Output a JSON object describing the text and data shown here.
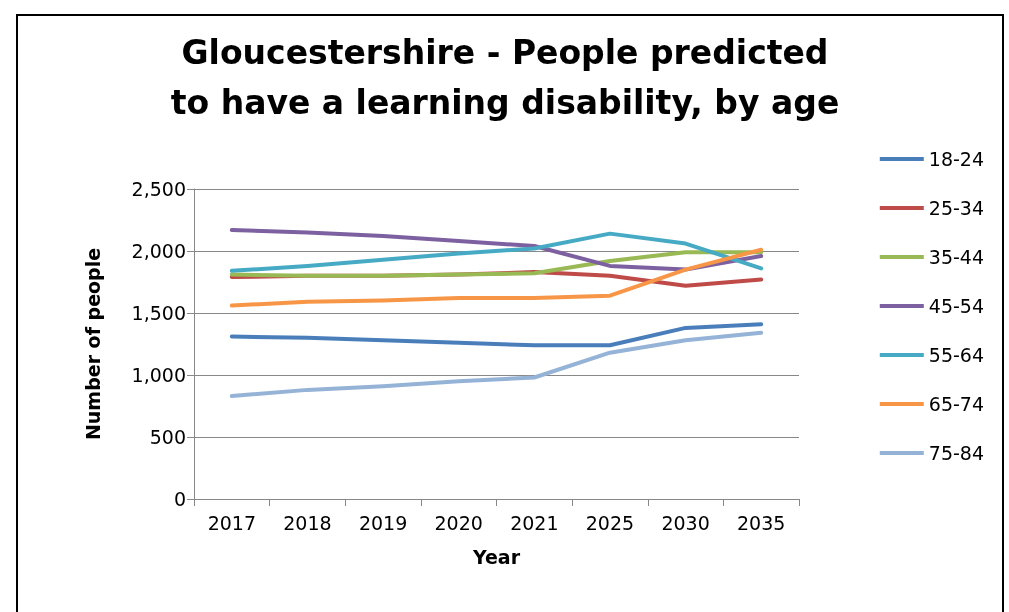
{
  "chart_data": {
    "type": "line",
    "title": "Gloucestershire - People predicted\nto have a learning disability, by age",
    "xlabel": "Year",
    "ylabel": "Number of people",
    "categories": [
      "2017",
      "2018",
      "2019",
      "2020",
      "2021",
      "2025",
      "2030",
      "2035"
    ],
    "series": [
      {
        "name": "18-24",
        "color": "#4a7ebb",
        "values": [
          1310,
          1300,
          1280,
          1260,
          1240,
          1240,
          1380,
          1410
        ]
      },
      {
        "name": "25-34",
        "color": "#be4b48",
        "values": [
          1790,
          1800,
          1800,
          1810,
          1830,
          1800,
          1720,
          1770
        ]
      },
      {
        "name": "35-44",
        "color": "#98b954",
        "values": [
          1810,
          1800,
          1800,
          1810,
          1820,
          1920,
          1990,
          1990
        ]
      },
      {
        "name": "45-54",
        "color": "#7d60a0",
        "values": [
          2170,
          2150,
          2120,
          2080,
          2040,
          1880,
          1850,
          1960
        ]
      },
      {
        "name": "55-64",
        "color": "#46aac5",
        "values": [
          1840,
          1880,
          1930,
          1980,
          2020,
          2140,
          2060,
          1860
        ]
      },
      {
        "name": "65-74",
        "color": "#f79646",
        "values": [
          1560,
          1590,
          1600,
          1620,
          1620,
          1640,
          1850,
          2010
        ]
      },
      {
        "name": "75-84",
        "color": "#95b3d7",
        "values": [
          830,
          880,
          910,
          950,
          980,
          1180,
          1280,
          1340
        ]
      }
    ],
    "ylim": [
      0,
      2500
    ],
    "yticks": [
      0,
      500,
      {
        "value": 1000,
        "label": "1,000"
      },
      {
        "value": 1500,
        "label": "1,500"
      },
      {
        "value": 2000,
        "label": "2,000"
      },
      {
        "value": 2500,
        "label": "2,500"
      }
    ],
    "grid": "y",
    "legend": "right",
    "marker": "none",
    "line_style": "solid"
  }
}
